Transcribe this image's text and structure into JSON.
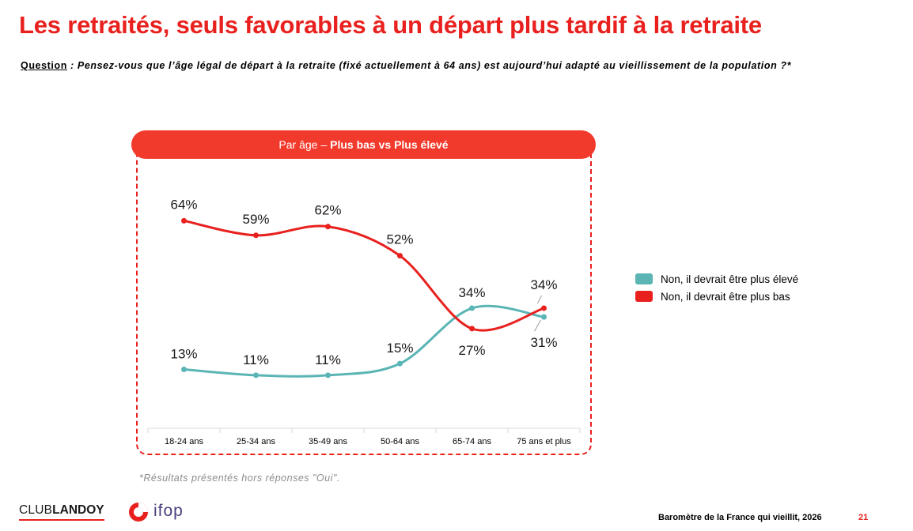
{
  "title": "Les retraités, seuls favorables à un départ plus tardif à la retraite",
  "question": {
    "label": "Question",
    "text": " : Pensez-vous que l’âge légal de départ à la retraite (fixé actuellement à 64 ans) est aujourd’hui adapté au vieillissement de la population ?*"
  },
  "panel": {
    "header_prefix": "Par âge –",
    "header_bold": "Plus bas vs Plus élevé"
  },
  "footnote": "*Résultats présentés hors réponses \"Oui\".",
  "footer": {
    "source": "Baromètre de la France qui vieillit, 2026",
    "page": "21",
    "logo_club": "CLUB",
    "logo_landoy": "LANDOY",
    "logo_ifop": "ifop"
  },
  "colors": {
    "accent": "#e8211e",
    "pill": "#f23a2c",
    "series_bas": "#e8211e",
    "series_eleve": "#5bb5b5"
  },
  "chart_data": {
    "type": "line",
    "categories": [
      "18-24 ans",
      "25-34 ans",
      "35-49 ans",
      "50-64 ans",
      "65-74 ans",
      "75 ans et plus"
    ],
    "series": [
      {
        "name": "Non, il devrait être plus élevé",
        "color": "#5bb5b5",
        "values": [
          13,
          11,
          11,
          15,
          34,
          31
        ],
        "labels": [
          "13%",
          "11%",
          "11%",
          "15%",
          "34%",
          "31%"
        ]
      },
      {
        "name": "Non, il devrait être plus bas",
        "color": "#e8211e",
        "values": [
          64,
          59,
          62,
          52,
          27,
          34
        ],
        "labels": [
          "64%",
          "59%",
          "62%",
          "52%",
          "27%",
          "34%"
        ]
      }
    ],
    "ylim": [
      0,
      100
    ],
    "grid": false,
    "legend": "right"
  }
}
